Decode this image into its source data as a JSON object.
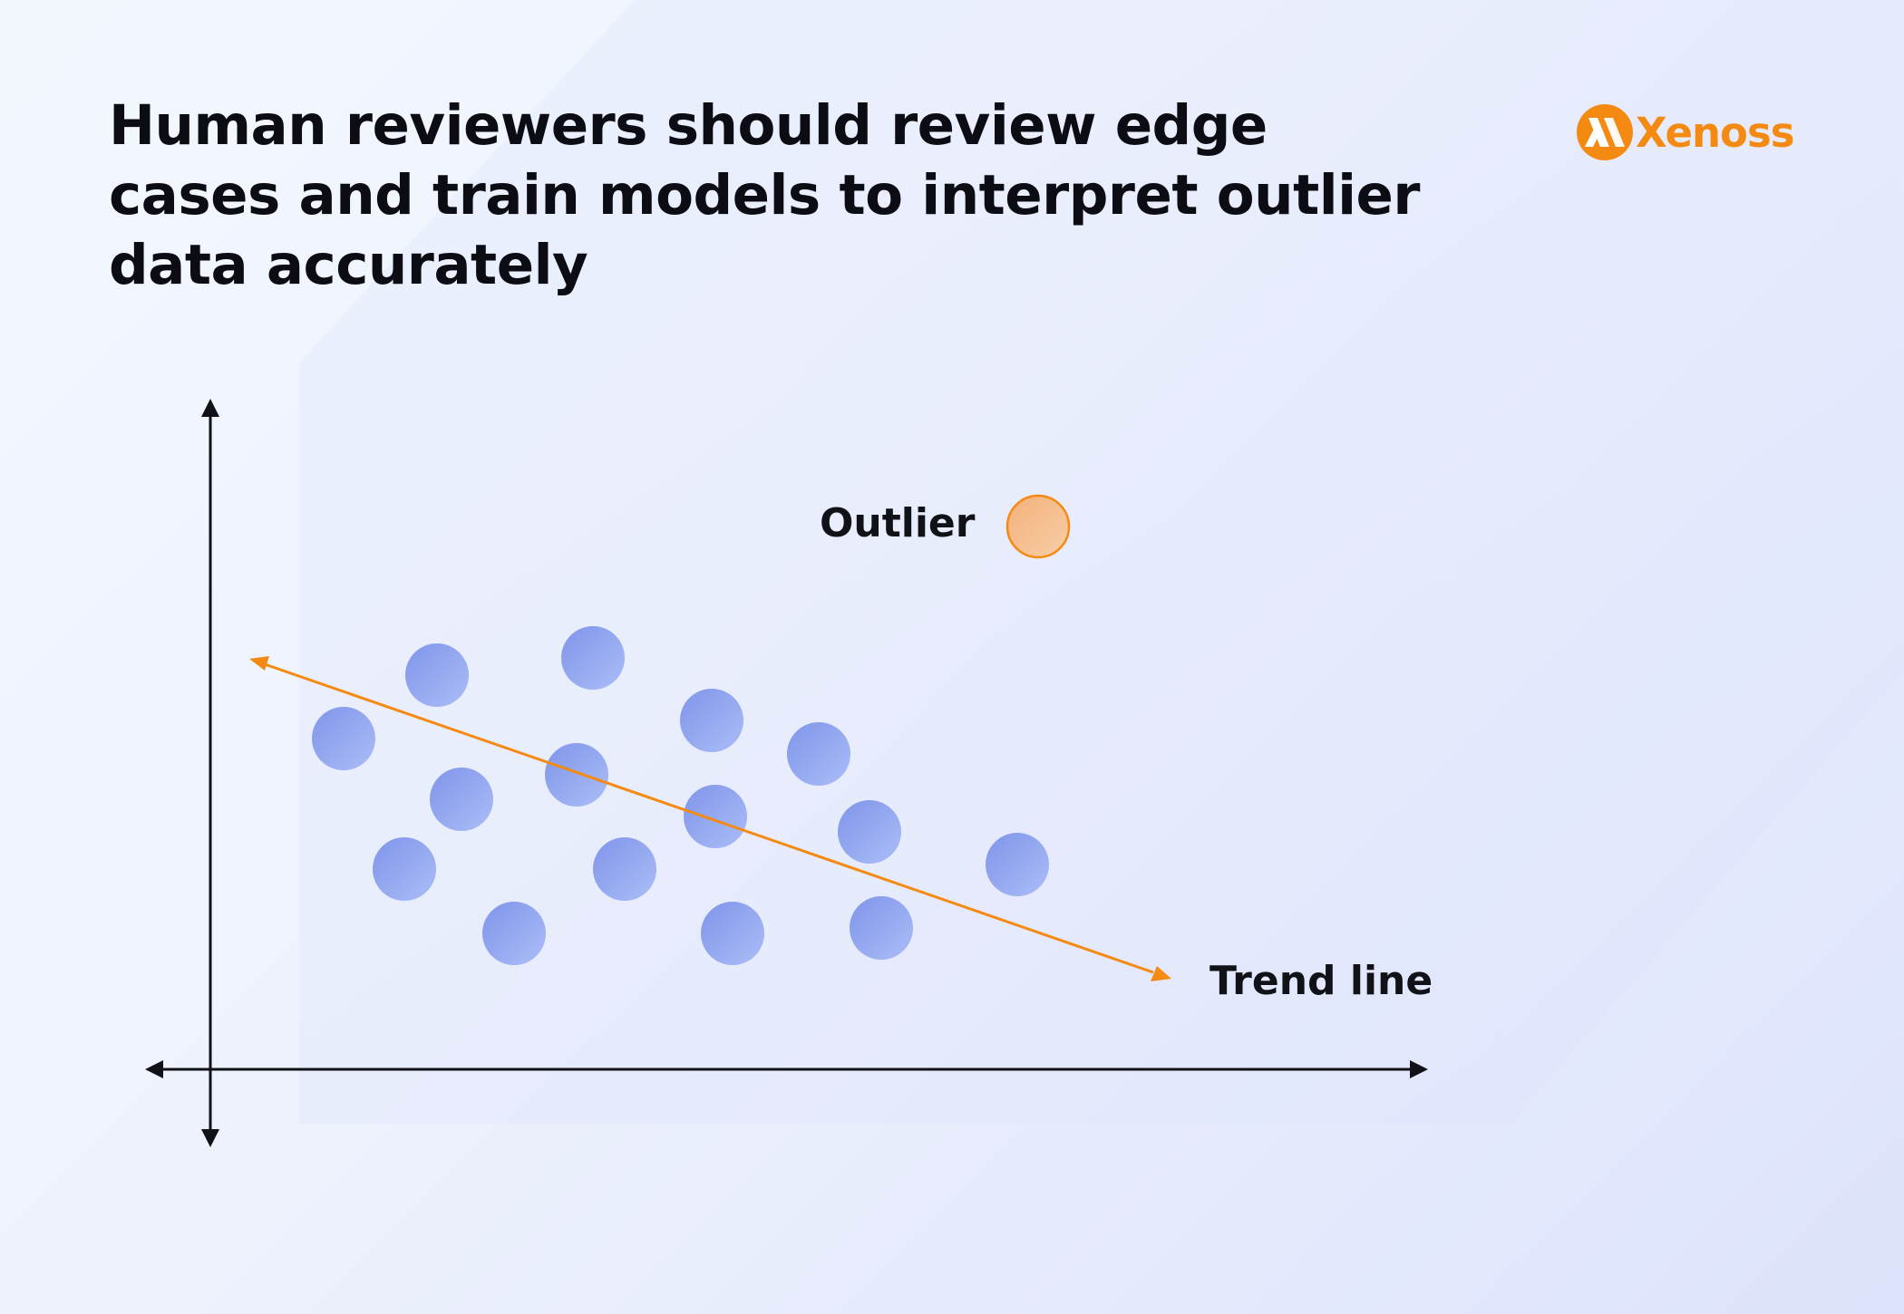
{
  "headline": {
    "lines": [
      "Human reviewers should review edge",
      "cases and train models to interpret outlier",
      "data accurately"
    ]
  },
  "logo": {
    "text": "Xenoss",
    "icon": "xenoss-logo-icon",
    "color": "#f58a12"
  },
  "diagram": {
    "outlier_label": "Outlier",
    "trend_label": "Trend line",
    "colors": {
      "points": "#8fa4ee",
      "outlier_fill": "#f5bd8e",
      "outlier_stroke": "#f58a12",
      "trend": "#f58a12",
      "axes": "#111118"
    }
  }
}
